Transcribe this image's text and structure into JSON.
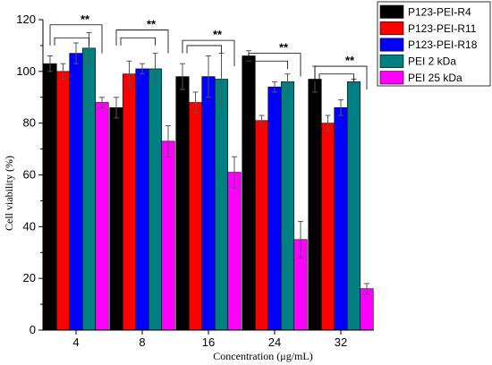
{
  "chart_data": {
    "type": "bar",
    "title": "",
    "xlabel": "Concentration (μg/mL)",
    "ylabel": "Cell viability (%)",
    "ylim": [
      0,
      120
    ],
    "yticks": [
      0,
      20,
      40,
      60,
      80,
      100,
      120
    ],
    "categories": [
      "4",
      "8",
      "16",
      "24",
      "32"
    ],
    "legend_position": "top-right",
    "series": [
      {
        "name": "P123-PEI-R4",
        "color": "#000000",
        "values": [
          103,
          86,
          98,
          106,
          97
        ],
        "errors": [
          3,
          4,
          5,
          2,
          5
        ]
      },
      {
        "name": "P123-PEI-R11",
        "color": "#ff0000",
        "values": [
          100,
          99,
          88,
          81,
          80
        ],
        "errors": [
          3,
          5,
          4,
          2,
          3
        ]
      },
      {
        "name": "P123-PEI-R18",
        "color": "#0000ff",
        "values": [
          107,
          101,
          98,
          94,
          86
        ],
        "errors": [
          4,
          2,
          8,
          2,
          3
        ]
      },
      {
        "name": "PEI 2 kDa",
        "color": "#008080",
        "values": [
          109,
          101,
          97,
          96,
          96
        ],
        "errors": [
          6,
          6,
          10,
          3,
          1
        ]
      },
      {
        "name": "PEI 25 kDa",
        "color": "#ff00ff",
        "values": [
          88,
          73,
          61,
          35,
          16
        ],
        "errors": [
          2,
          6,
          6,
          7,
          2
        ]
      }
    ],
    "significance": [
      {
        "category": "4",
        "label": "**",
        "bracket_y": [
          118,
          113
        ],
        "right_y": 113
      },
      {
        "category": "8",
        "label": "**",
        "bracket_y": [
          116,
          113
        ],
        "right_y": 113
      },
      {
        "category": "16",
        "label": "**",
        "bracket_y": [
          112,
          110
        ],
        "right_y": 108
      },
      {
        "category": "24",
        "label": "**",
        "bracket_y": [
          107,
          104
        ],
        "right_y": 104
      },
      {
        "category": "32",
        "label": "**",
        "bracket_y": [
          102,
          99
        ],
        "right_y": 99
      }
    ]
  }
}
